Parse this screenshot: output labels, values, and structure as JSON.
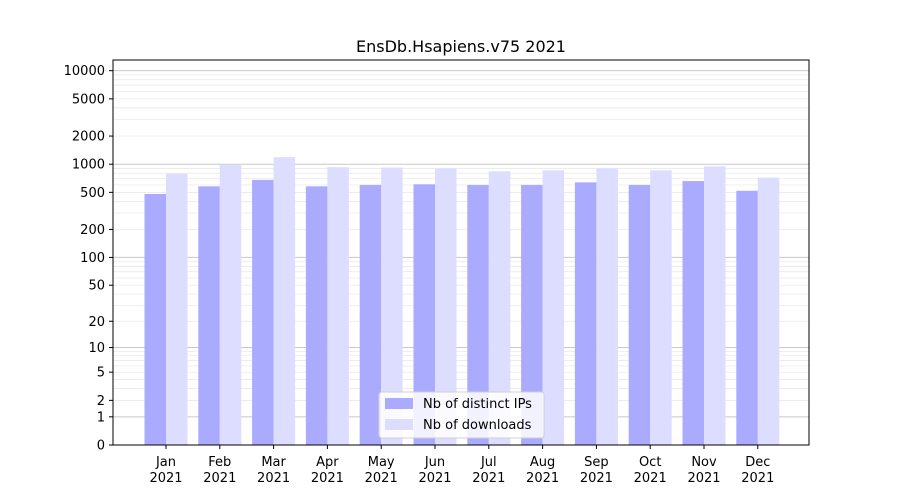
{
  "chart_data": {
    "type": "bar",
    "title": "EnsDb.Hsapiens.v75 2021",
    "xlabel": "",
    "ylabel": "",
    "yscale": "log(1+y)",
    "ylim": [
      0,
      13000
    ],
    "yticks": [
      0,
      1,
      2,
      5,
      10,
      20,
      50,
      100,
      200,
      500,
      1000,
      2000,
      5000,
      10000
    ],
    "ytick_labels": [
      "0",
      "1",
      "2",
      "5",
      "10",
      "20",
      "50",
      "100",
      "200",
      "500",
      "1000",
      "2000",
      "5000",
      "10000"
    ],
    "categories": [
      "Jan",
      "Feb",
      "Mar",
      "Apr",
      "May",
      "Jun",
      "Jul",
      "Aug",
      "Sep",
      "Oct",
      "Nov",
      "Dec"
    ],
    "category_year": "2021",
    "series": [
      {
        "name": "Nb of distinct IPs",
        "color": "#aaaaff",
        "values": [
          480,
          580,
          680,
          580,
          600,
          610,
          600,
          600,
          640,
          600,
          660,
          520
        ]
      },
      {
        "name": "Nb of downloads",
        "color": "#ddddff",
        "values": [
          790,
          980,
          1190,
          930,
          920,
          900,
          840,
          860,
          900,
          860,
          950,
          720
        ]
      }
    ],
    "grid": "horizontal",
    "legend_position": "bottom-center"
  }
}
